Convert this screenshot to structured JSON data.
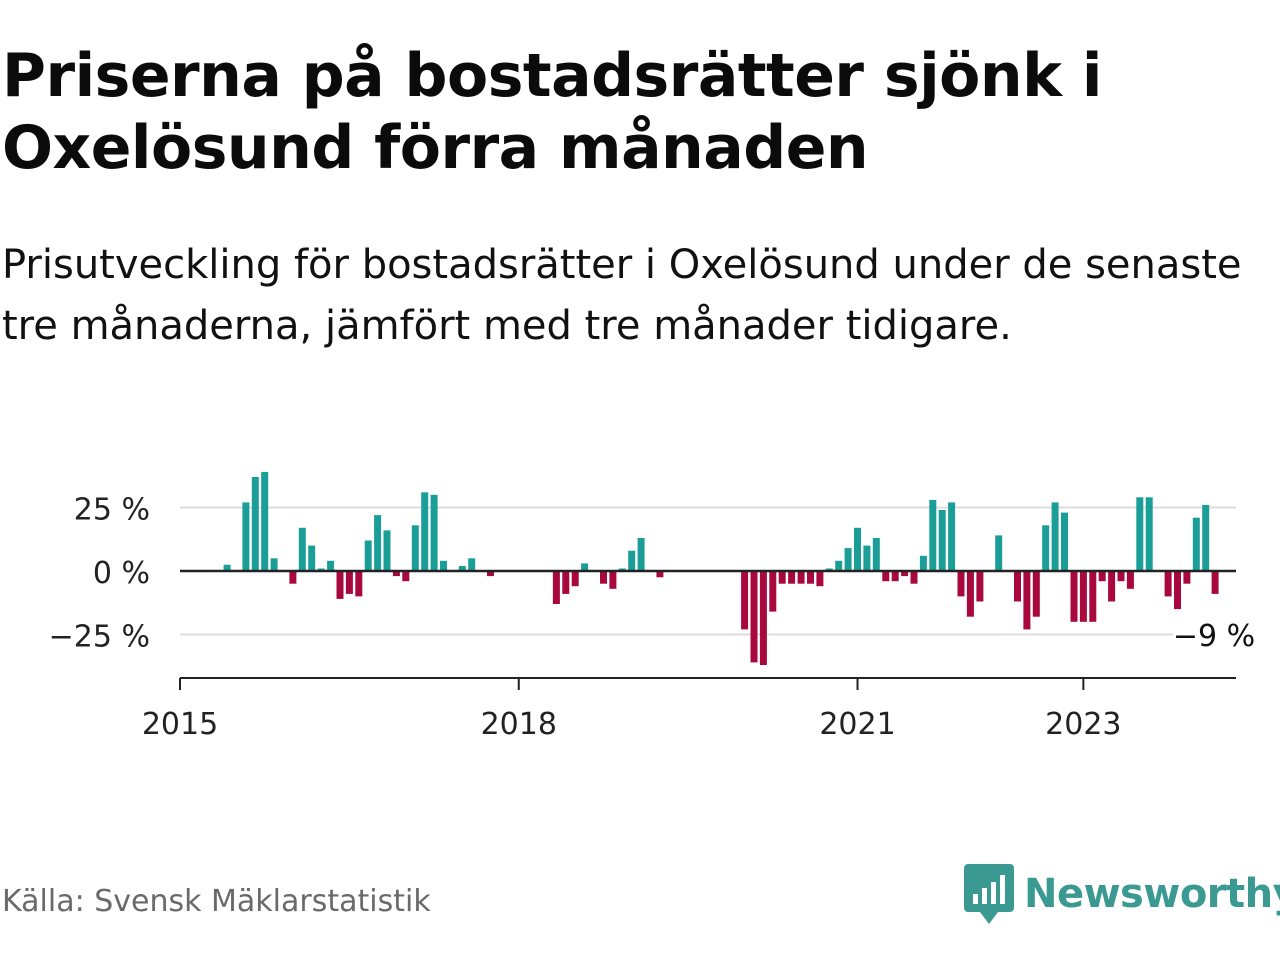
{
  "title": "Priserna på bostadsrätter sjönk i Oxelösund förra månaden",
  "subtitle": "Prisutveckling för bostadsrätter i Oxelösund under de senaste tre månaderna, jämfört med tre månader tidigare.",
  "source": "Källa: Svensk Mäklarstatistik",
  "brand": {
    "name": "Newsworthy",
    "color": "#3a9a92",
    "icon": "bar-chart-speech-bubble-icon"
  },
  "chart_data": {
    "type": "bar",
    "x_unit": "month",
    "x_range": [
      "2015-01",
      "2024-03"
    ],
    "y_range": [
      -41,
      41
    ],
    "y_ticks": [
      {
        "value": 25,
        "label": "25 %"
      },
      {
        "value": 0,
        "label": "0 %"
      },
      {
        "value": -25,
        "label": "−25 %"
      }
    ],
    "x_ticks": [
      {
        "value": "2015-01",
        "label": "2015"
      },
      {
        "value": "2018-01",
        "label": "2018"
      },
      {
        "value": "2021-01",
        "label": "2021"
      },
      {
        "value": "2023-01",
        "label": "2023"
      }
    ],
    "positive_color": "#1b9e97",
    "negative_color": "#a8083e",
    "grid": true,
    "last_value_label": "−9 %",
    "series": [
      {
        "values": [
          [
            "2015-06",
            2.5
          ],
          [
            "2015-08",
            27
          ],
          [
            "2015-09",
            37
          ],
          [
            "2015-10",
            39
          ],
          [
            "2015-11",
            5
          ],
          [
            "2016-01",
            -5
          ],
          [
            "2016-02",
            17
          ],
          [
            "2016-03",
            10
          ],
          [
            "2016-04",
            1
          ],
          [
            "2016-05",
            4
          ],
          [
            "2016-06",
            -11
          ],
          [
            "2016-07",
            -9
          ],
          [
            "2016-08",
            -10
          ],
          [
            "2016-09",
            12
          ],
          [
            "2016-10",
            22
          ],
          [
            "2016-11",
            16
          ],
          [
            "2016-12",
            -2
          ],
          [
            "2017-01",
            -4
          ],
          [
            "2017-02",
            18
          ],
          [
            "2017-03",
            31
          ],
          [
            "2017-04",
            30
          ],
          [
            "2017-05",
            4
          ],
          [
            "2017-07",
            2
          ],
          [
            "2017-08",
            5
          ],
          [
            "2017-10",
            -2
          ],
          [
            "2018-05",
            -13
          ],
          [
            "2018-06",
            -9
          ],
          [
            "2018-07",
            -6
          ],
          [
            "2018-08",
            3
          ],
          [
            "2018-10",
            -5
          ],
          [
            "2018-11",
            -7
          ],
          [
            "2018-12",
            1
          ],
          [
            "2019-01",
            8
          ],
          [
            "2019-02",
            13
          ],
          [
            "2019-04",
            -2.5
          ],
          [
            "2020-01",
            -23
          ],
          [
            "2020-02",
            -36
          ],
          [
            "2020-03",
            -37
          ],
          [
            "2020-04",
            -16
          ],
          [
            "2020-05",
            -5
          ],
          [
            "2020-06",
            -5
          ],
          [
            "2020-07",
            -5
          ],
          [
            "2020-08",
            -5
          ],
          [
            "2020-09",
            -6
          ],
          [
            "2020-10",
            1
          ],
          [
            "2020-11",
            4
          ],
          [
            "2020-12",
            9
          ],
          [
            "2021-01",
            17
          ],
          [
            "2021-02",
            10
          ],
          [
            "2021-03",
            13
          ],
          [
            "2021-04",
            -4
          ],
          [
            "2021-05",
            -4
          ],
          [
            "2021-06",
            -2
          ],
          [
            "2021-07",
            -5
          ],
          [
            "2021-08",
            6
          ],
          [
            "2021-09",
            28
          ],
          [
            "2021-10",
            24
          ],
          [
            "2021-11",
            27
          ],
          [
            "2021-12",
            -10
          ],
          [
            "2022-01",
            -18
          ],
          [
            "2022-02",
            -12
          ],
          [
            "2022-04",
            14
          ],
          [
            "2022-06",
            -12
          ],
          [
            "2022-07",
            -23
          ],
          [
            "2022-08",
            -18
          ],
          [
            "2022-09",
            18
          ],
          [
            "2022-10",
            27
          ],
          [
            "2022-11",
            23
          ],
          [
            "2022-12",
            -20
          ],
          [
            "2023-01",
            -20
          ],
          [
            "2023-02",
            -20
          ],
          [
            "2023-03",
            -4
          ],
          [
            "2023-04",
            -12
          ],
          [
            "2023-05",
            -4
          ],
          [
            "2023-06",
            -7
          ],
          [
            "2023-07",
            29
          ],
          [
            "2023-08",
            29
          ],
          [
            "2023-10",
            -10
          ],
          [
            "2023-11",
            -15
          ],
          [
            "2023-12",
            -5
          ],
          [
            "2024-01",
            21
          ],
          [
            "2024-02",
            26
          ],
          [
            "2024-03",
            -9
          ]
        ]
      }
    ]
  }
}
